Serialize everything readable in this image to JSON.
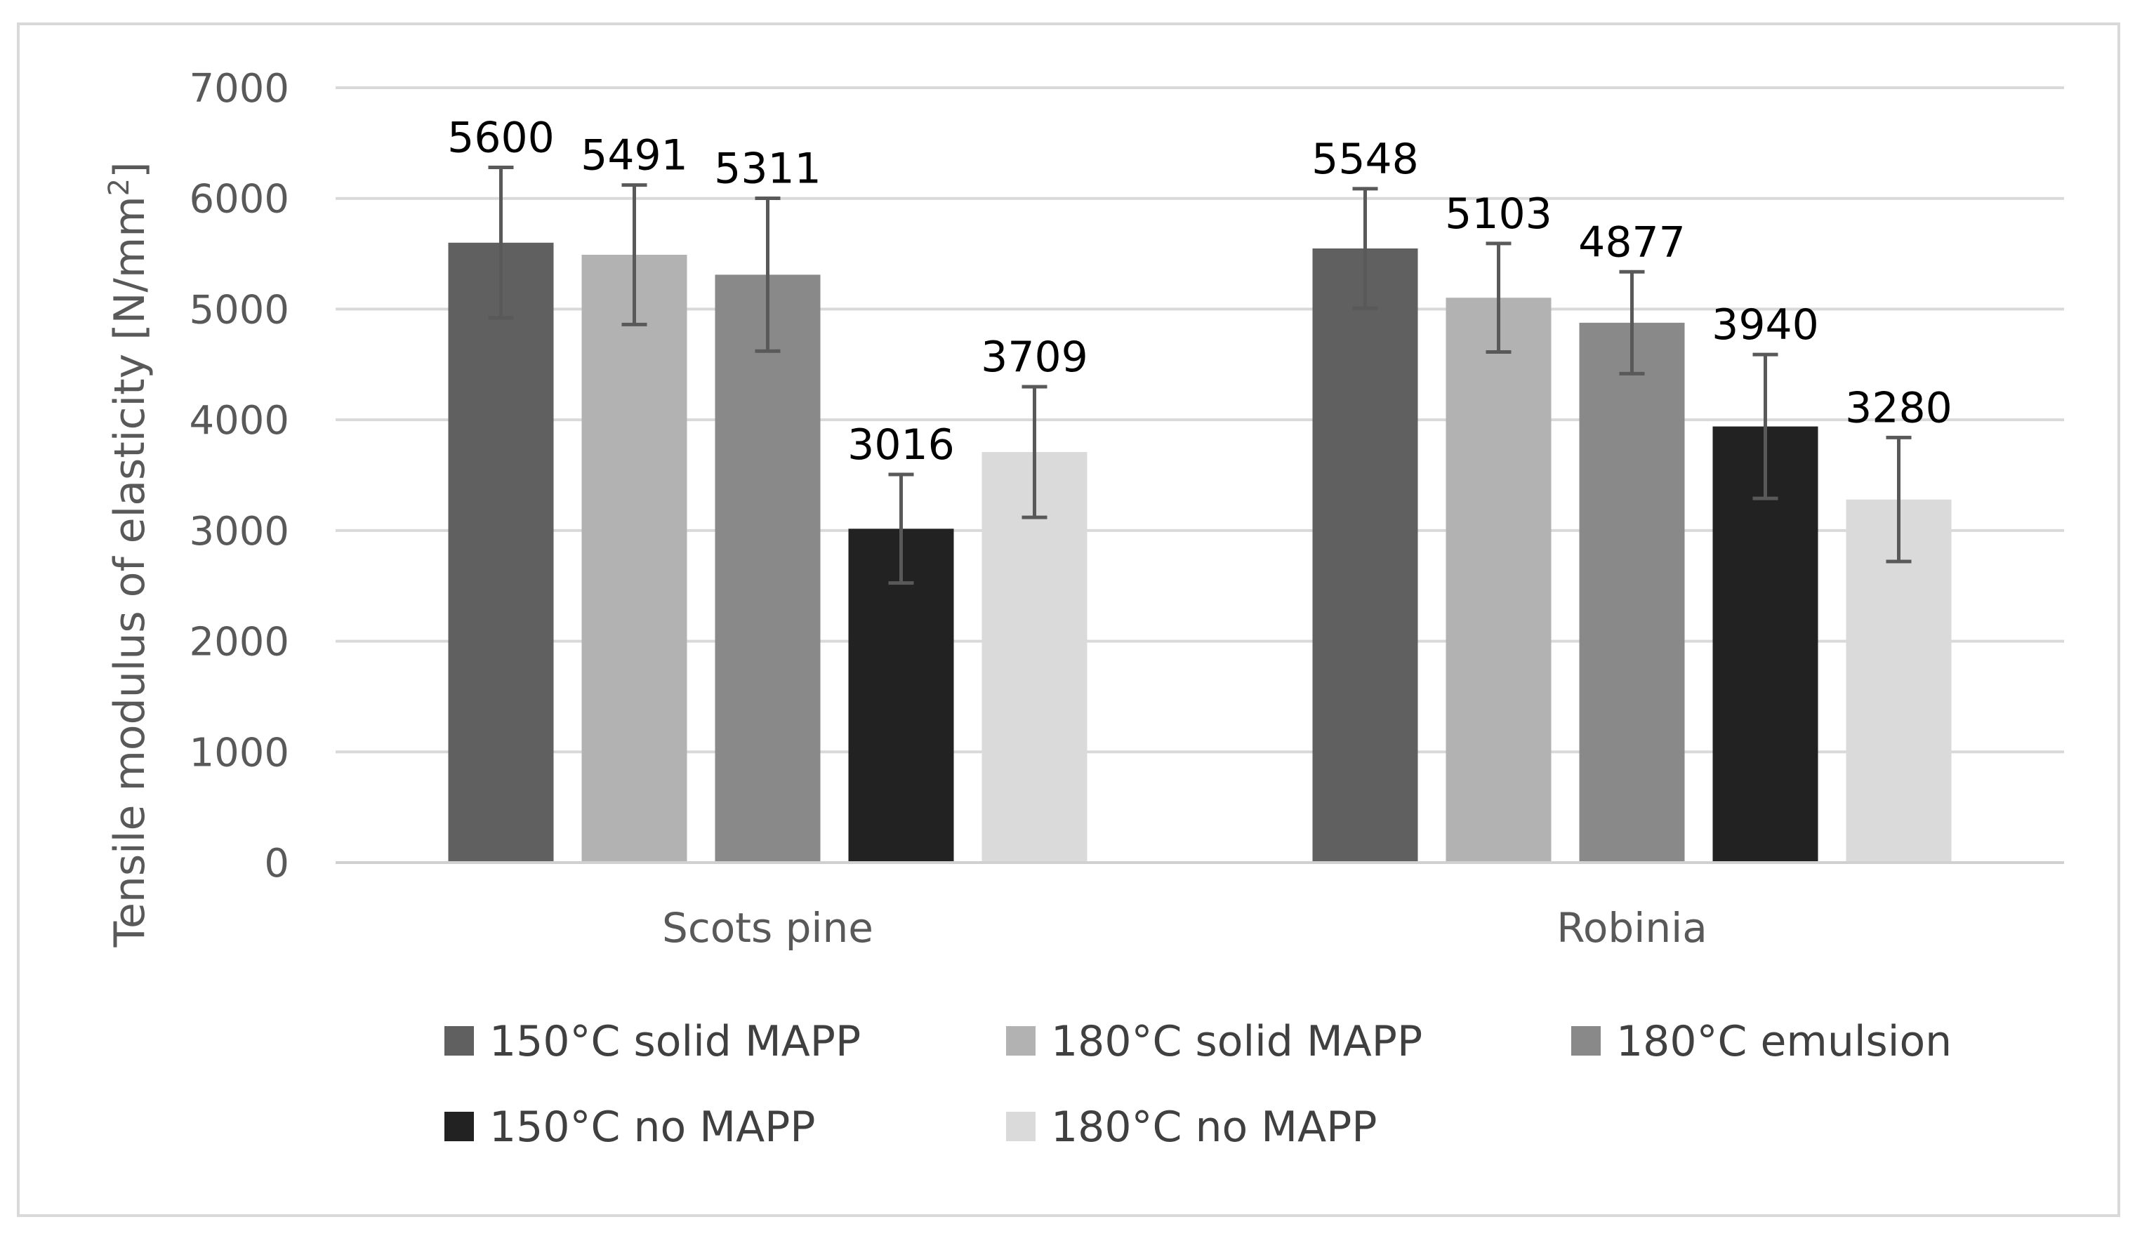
{
  "chart_data": {
    "type": "bar",
    "categories": [
      "Scots pine",
      "Robinia"
    ],
    "ylabel": "Tensile modulus of elasticity [N/mm",
    "ylabel_superscript": "2",
    "ylabel_suffix": "]",
    "ylim": [
      0,
      7000
    ],
    "yticks": [
      0,
      1000,
      2000,
      3000,
      4000,
      5000,
      6000,
      7000
    ],
    "ytick_labels": [
      "0",
      "1000",
      "2000",
      "3000",
      "4000",
      "5000",
      "6000",
      "7000"
    ],
    "grid": true,
    "legend_position": "bottom",
    "series": [
      {
        "name": "150°C solid MAPP",
        "color": "#606060",
        "values": [
          5600,
          5548
        ],
        "labels": [
          "5600",
          "5548"
        ],
        "errors": [
          680,
          540
        ]
      },
      {
        "name": "180°C solid MAPP",
        "color": "#b2b2b2",
        "values": [
          5491,
          5103
        ],
        "labels": [
          "5491",
          "5103"
        ],
        "errors": [
          630,
          490
        ]
      },
      {
        "name": "180°C emulsion",
        "color": "#898989",
        "values": [
          5311,
          4877
        ],
        "labels": [
          "5311",
          "4877"
        ],
        "errors": [
          690,
          460
        ]
      },
      {
        "name": "150°C no MAPP",
        "color": "#222222",
        "values": [
          3016,
          3940
        ],
        "labels": [
          "3016",
          "3940"
        ],
        "errors": [
          490,
          650
        ]
      },
      {
        "name": "180°C no MAPP",
        "color": "#dadada",
        "values": [
          3709,
          3280
        ],
        "labels": [
          "3709",
          "3280"
        ],
        "errors": [
          590,
          560
        ]
      }
    ]
  }
}
